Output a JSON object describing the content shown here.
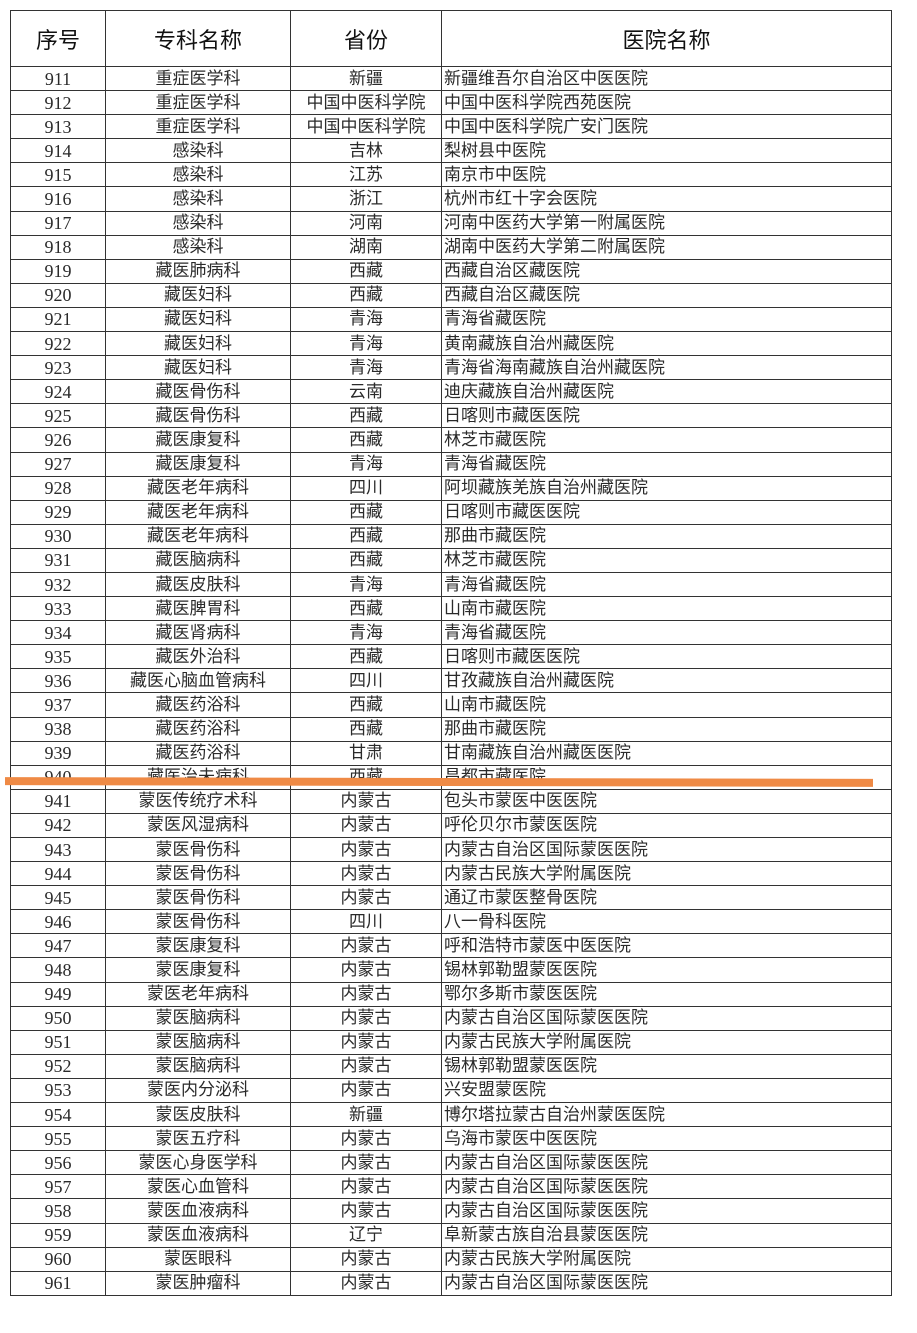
{
  "table": {
    "headers": [
      "序号",
      "专科名称",
      "省份",
      "医院名称"
    ],
    "rows": [
      [
        "911",
        "重症医学科",
        "新疆",
        "新疆维吾尔自治区中医医院"
      ],
      [
        "912",
        "重症医学科",
        "中国中医科学院",
        "中国中医科学院西苑医院"
      ],
      [
        "913",
        "重症医学科",
        "中国中医科学院",
        "中国中医科学院广安门医院"
      ],
      [
        "914",
        "感染科",
        "吉林",
        "梨树县中医院"
      ],
      [
        "915",
        "感染科",
        "江苏",
        "南京市中医院"
      ],
      [
        "916",
        "感染科",
        "浙江",
        "杭州市红十字会医院"
      ],
      [
        "917",
        "感染科",
        "河南",
        "河南中医药大学第一附属医院"
      ],
      [
        "918",
        "感染科",
        "湖南",
        "湖南中医药大学第二附属医院"
      ],
      [
        "919",
        "藏医肺病科",
        "西藏",
        "西藏自治区藏医院"
      ],
      [
        "920",
        "藏医妇科",
        "西藏",
        "西藏自治区藏医院"
      ],
      [
        "921",
        "藏医妇科",
        "青海",
        "青海省藏医院"
      ],
      [
        "922",
        "藏医妇科",
        "青海",
        "黄南藏族自治州藏医院"
      ],
      [
        "923",
        "藏医妇科",
        "青海",
        "青海省海南藏族自治州藏医院"
      ],
      [
        "924",
        "藏医骨伤科",
        "云南",
        "迪庆藏族自治州藏医院"
      ],
      [
        "925",
        "藏医骨伤科",
        "西藏",
        "日喀则市藏医医院"
      ],
      [
        "926",
        "藏医康复科",
        "西藏",
        "林芝市藏医院"
      ],
      [
        "927",
        "藏医康复科",
        "青海",
        "青海省藏医院"
      ],
      [
        "928",
        "藏医老年病科",
        "四川",
        "阿坝藏族羌族自治州藏医院"
      ],
      [
        "929",
        "藏医老年病科",
        "西藏",
        "日喀则市藏医医院"
      ],
      [
        "930",
        "藏医老年病科",
        "西藏",
        "那曲市藏医院"
      ],
      [
        "931",
        "藏医脑病科",
        "西藏",
        "林芝市藏医院"
      ],
      [
        "932",
        "藏医皮肤科",
        "青海",
        "青海省藏医院"
      ],
      [
        "933",
        "藏医脾胃科",
        "西藏",
        "山南市藏医院"
      ],
      [
        "934",
        "藏医肾病科",
        "青海",
        "青海省藏医院"
      ],
      [
        "935",
        "藏医外治科",
        "西藏",
        "日喀则市藏医医院"
      ],
      [
        "936",
        "藏医心脑血管病科",
        "四川",
        "甘孜藏族自治州藏医院"
      ],
      [
        "937",
        "藏医药浴科",
        "西藏",
        "山南市藏医院"
      ],
      [
        "938",
        "藏医药浴科",
        "西藏",
        "那曲市藏医院"
      ],
      [
        "939",
        "藏医药浴科",
        "甘肃",
        "甘南藏族自治州藏医医院"
      ],
      [
        "940",
        "藏医治未病科",
        "西藏",
        "昌都市藏医院"
      ],
      [
        "941",
        "蒙医传统疗术科",
        "内蒙古",
        "包头市蒙医中医医院"
      ],
      [
        "942",
        "蒙医风湿病科",
        "内蒙古",
        "呼伦贝尔市蒙医医院"
      ],
      [
        "943",
        "蒙医骨伤科",
        "内蒙古",
        "内蒙古自治区国际蒙医医院"
      ],
      [
        "944",
        "蒙医骨伤科",
        "内蒙古",
        "内蒙古民族大学附属医院"
      ],
      [
        "945",
        "蒙医骨伤科",
        "内蒙古",
        "通辽市蒙医整骨医院"
      ],
      [
        "946",
        "蒙医骨伤科",
        "四川",
        "八一骨科医院"
      ],
      [
        "947",
        "蒙医康复科",
        "内蒙古",
        "呼和浩特市蒙医中医医院"
      ],
      [
        "948",
        "蒙医康复科",
        "内蒙古",
        "锡林郭勒盟蒙医医院"
      ],
      [
        "949",
        "蒙医老年病科",
        "内蒙古",
        "鄂尔多斯市蒙医医院"
      ],
      [
        "950",
        "蒙医脑病科",
        "内蒙古",
        "内蒙古自治区国际蒙医医院"
      ],
      [
        "951",
        "蒙医脑病科",
        "内蒙古",
        "内蒙古民族大学附属医院"
      ],
      [
        "952",
        "蒙医脑病科",
        "内蒙古",
        "锡林郭勒盟蒙医医院"
      ],
      [
        "953",
        "蒙医内分泌科",
        "内蒙古",
        "兴安盟蒙医院"
      ],
      [
        "954",
        "蒙医皮肤科",
        "新疆",
        "博尔塔拉蒙古自治州蒙医医院"
      ],
      [
        "955",
        "蒙医五疗科",
        "内蒙古",
        "乌海市蒙医中医医院"
      ],
      [
        "956",
        "蒙医心身医学科",
        "内蒙古",
        "内蒙古自治区国际蒙医医院"
      ],
      [
        "957",
        "蒙医心血管科",
        "内蒙古",
        "内蒙古自治区国际蒙医医院"
      ],
      [
        "958",
        "蒙医血液病科",
        "内蒙古",
        "内蒙古自治区国际蒙医医院"
      ],
      [
        "959",
        "蒙医血液病科",
        "辽宁",
        "阜新蒙古族自治县蒙医医院"
      ],
      [
        "960",
        "蒙医眼科",
        "内蒙古",
        "内蒙古民族大学附属医院"
      ],
      [
        "961",
        "蒙医肿瘤科",
        "内蒙古",
        "内蒙古自治区国际蒙医医院"
      ]
    ]
  },
  "highlight_color": "#ef8a45"
}
